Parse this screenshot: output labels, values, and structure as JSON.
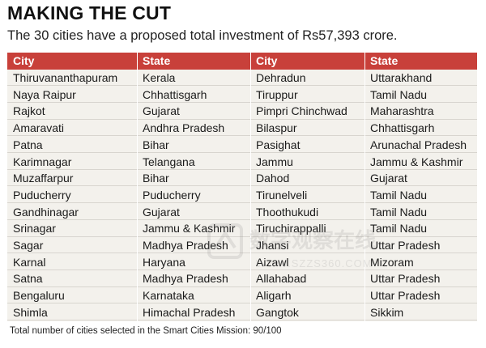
{
  "title": "MAKING THE CUT",
  "subtitle": "The 30 cities have a proposed total investment of Rs57,393 crore.",
  "headers": [
    "City",
    "State",
    "City",
    "State"
  ],
  "rows": [
    [
      "Thiruvananthapuram",
      "Kerala",
      "Dehradun",
      "Uttarakhand"
    ],
    [
      "Naya Raipur",
      "Chhattisgarh",
      "Tiruppur",
      "Tamil Nadu"
    ],
    [
      "Rajkot",
      "Gujarat",
      "Pimpri Chinchwad",
      "Maharashtra"
    ],
    [
      "Amaravati",
      "Andhra Pradesh",
      "Bilaspur",
      "Chhattisgarh"
    ],
    [
      "Patna",
      "Bihar",
      "Pasighat",
      "Arunachal Pradesh"
    ],
    [
      "Karimnagar",
      "Telangana",
      "Jammu",
      "Jammu & Kashmir"
    ],
    [
      "Muzaffarpur",
      "Bihar",
      "Dahod",
      "Gujarat"
    ],
    [
      "Puducherry",
      "Puducherry",
      "Tirunelveli",
      "Tamil Nadu"
    ],
    [
      "Gandhinagar",
      "Gujarat",
      "Thoothukudi",
      "Tamil Nadu"
    ],
    [
      "Srinagar",
      "Jammu & Kashmir",
      "Tiruchirappalli",
      "Tamil Nadu"
    ],
    [
      "Sagar",
      "Madhya Pradesh",
      "Jhansi",
      "Uttar Pradesh"
    ],
    [
      "Karnal",
      "Haryana",
      "Aizawl",
      "Mizoram"
    ],
    [
      "Satna",
      "Madhya Pradesh",
      "Allahabad",
      "Uttar Pradesh"
    ],
    [
      "Bengaluru",
      "Karnataka",
      "Aligarh",
      "Uttar Pradesh"
    ],
    [
      "Shimla",
      "Himachal Pradesh",
      "Gangtok",
      "Sikkim"
    ]
  ],
  "footnote": "Total number of cities selected in the Smart Cities Mission: 90/100",
  "watermark": {
    "text_cn": "数字观察在线",
    "text_url": "WWW.SZZS360.COM"
  },
  "colors": {
    "header_bg": "#c8403a",
    "table_bg": "#f3f1ec",
    "row_divider": "#d8d5cf"
  }
}
